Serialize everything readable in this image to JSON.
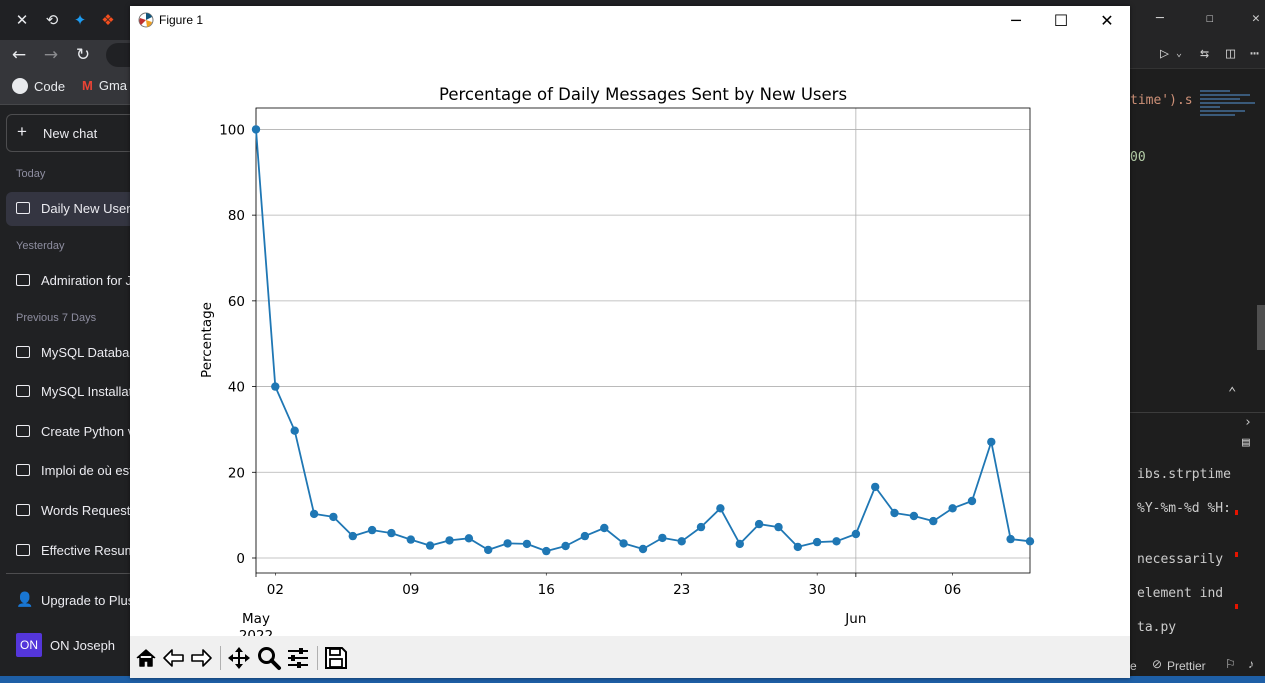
{
  "browser": {
    "bookmarks": [
      "Code",
      "Gma"
    ]
  },
  "sidebar": {
    "new_chat": "New chat",
    "sections": [
      {
        "label": "Today",
        "items": [
          "Daily New User"
        ]
      },
      {
        "label": "Yesterday",
        "items": [
          "Admiration for J"
        ]
      },
      {
        "label": "Previous 7 Days",
        "items": [
          "MySQL Databas",
          "MySQL Installat",
          "Create Python v",
          "Imploi de où est",
          "Words Requeste",
          "Effective Resum"
        ]
      }
    ],
    "upgrade": "Upgrade to Plus",
    "user": {
      "initials": "ON",
      "name": "ON Joseph"
    }
  },
  "editor": {
    "code_lines": [
      "time').s",
      "00"
    ],
    "terminal_lines": [
      "ibs.strptime",
      "%Y-%m-%d %H:",
      "necessarily",
      "element ind",
      "ta.py"
    ],
    "status": [
      "e",
      "Prettier"
    ]
  },
  "figure": {
    "window_title": "Figure 1",
    "colors": {
      "line": "#1f77b4",
      "grid": "#b0b0b0"
    }
  },
  "chart_data": {
    "type": "line",
    "title": "Percentage of Daily Messages Sent by New Users",
    "xlabel": "",
    "ylabel": "Percentage",
    "ylim": [
      -3.5,
      105
    ],
    "xlim": [
      "2022-05-01",
      "2022-06-10"
    ],
    "grid": true,
    "y_ticks": [
      0,
      20,
      40,
      60,
      80,
      100
    ],
    "x_major_ticks": [
      {
        "date": "2022-05-01",
        "label": "May",
        "sublabel": "2022"
      },
      {
        "date": "2022-06-01",
        "label": "Jun",
        "sublabel": ""
      }
    ],
    "x_minor_ticks": [
      {
        "date": "2022-05-02",
        "label": "02"
      },
      {
        "date": "2022-05-09",
        "label": "09"
      },
      {
        "date": "2022-05-16",
        "label": "16"
      },
      {
        "date": "2022-05-23",
        "label": "23"
      },
      {
        "date": "2022-05-30",
        "label": "30"
      },
      {
        "date": "2022-06-06",
        "label": "06"
      }
    ],
    "x": [
      "2022-05-01",
      "2022-05-02",
      "2022-05-03",
      "2022-05-04",
      "2022-05-05",
      "2022-05-06",
      "2022-05-07",
      "2022-05-08",
      "2022-05-09",
      "2022-05-10",
      "2022-05-11",
      "2022-05-12",
      "2022-05-13",
      "2022-05-14",
      "2022-05-15",
      "2022-05-16",
      "2022-05-17",
      "2022-05-18",
      "2022-05-19",
      "2022-05-20",
      "2022-05-21",
      "2022-05-22",
      "2022-05-23",
      "2022-05-24",
      "2022-05-25",
      "2022-05-26",
      "2022-05-27",
      "2022-05-28",
      "2022-05-29",
      "2022-05-30",
      "2022-05-31",
      "2022-06-01",
      "2022-06-02",
      "2022-06-03",
      "2022-06-04",
      "2022-06-05",
      "2022-06-06",
      "2022-06-07",
      "2022-06-08",
      "2022-06-09",
      "2022-06-10"
    ],
    "series": [
      {
        "values": [
          100,
          40,
          29.7,
          10.3,
          9.6,
          5.1,
          6.5,
          5.8,
          4.3,
          2.9,
          4.1,
          4.6,
          1.9,
          3.4,
          3.3,
          1.6,
          2.8,
          5.1,
          7.0,
          3.4,
          2.1,
          4.7,
          3.9,
          7.2,
          11.6,
          3.3,
          7.9,
          7.2,
          2.6,
          3.7,
          3.9,
          5.6,
          16.6,
          10.5,
          9.8,
          8.6,
          11.6,
          13.3,
          27.1,
          4.4,
          3.9
        ]
      }
    ]
  }
}
